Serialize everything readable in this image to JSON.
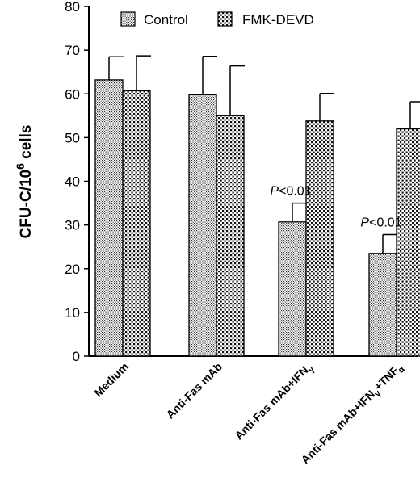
{
  "chart_data": {
    "type": "bar",
    "ylabel_main": "CFU-C/10",
    "ylabel_sup": "6",
    "ylabel_tail": " cells",
    "ylim": [
      0,
      80
    ],
    "yticks": [
      "0",
      "10",
      "20",
      "30",
      "40",
      "50",
      "60",
      "70",
      "80"
    ],
    "categories": [
      {
        "main": "Medium",
        "sub": ""
      },
      {
        "main": "Anti-Fas mAb",
        "sub": ""
      },
      {
        "main": "Anti-Fas mAb+IFN",
        "sub": "γ"
      },
      {
        "main": "Anti-Fas mAb+IFN",
        "sub": "γ",
        "tail": "+TNF",
        "tail_sub": "α"
      }
    ],
    "series": [
      {
        "name": "Control",
        "pattern": "fine-dots",
        "values": [
          63.2,
          59.8,
          30.7,
          23.5
        ],
        "errors": [
          5.3,
          8.8,
          4.3,
          4.3
        ]
      },
      {
        "name": "FMK-DEVD",
        "pattern": "coarse-dots",
        "values": [
          60.7,
          55.0,
          53.8,
          52.0
        ],
        "errors": [
          8.0,
          11.4,
          6.3,
          6.2
        ]
      }
    ],
    "annotations": [
      {
        "text_italic": "P",
        "text": "<0.01",
        "category_index": 2,
        "series_index": 0
      },
      {
        "text_italic": "P",
        "text": "<0.01",
        "category_index": 3,
        "series_index": 0
      }
    ],
    "legend_position": "top"
  }
}
